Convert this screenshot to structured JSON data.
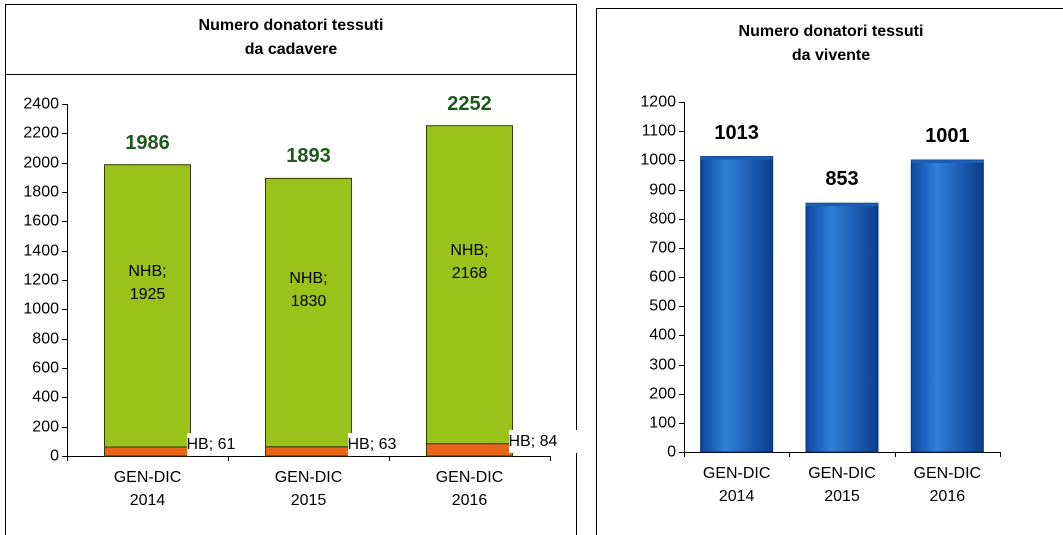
{
  "chart_data": [
    {
      "type": "bar",
      "stacked": true,
      "title": "Numero donatori tessuti\nda cadavere",
      "categories": [
        "GEN-DIC 2014",
        "GEN-DIC 2015",
        "GEN-DIC 2016"
      ],
      "series": [
        {
          "name": "HB",
          "color": "#e8661a",
          "values": [
            61,
            63,
            84
          ],
          "value_labels": [
            "HB; 61",
            "HB; 63",
            "HB; 84"
          ]
        },
        {
          "name": "NHB",
          "color": "#99c31a",
          "values": [
            1925,
            1830,
            2168
          ],
          "value_labels": [
            "NHB; 1925",
            "NHB; 1830",
            "NHB; 2168"
          ]
        }
      ],
      "totals": [
        1986,
        1893,
        2252
      ],
      "ylim": [
        0,
        2400
      ],
      "yticks": [
        0,
        200,
        400,
        600,
        800,
        1000,
        1200,
        1400,
        1600,
        1800,
        2000,
        2200,
        2400
      ]
    },
    {
      "type": "bar",
      "title": "Numero donatori tessuti\nda vivente",
      "categories": [
        "GEN-DIC 2014",
        "GEN-DIC 2015",
        "GEN-DIC 2016"
      ],
      "values": [
        1013,
        853,
        1001
      ],
      "color": "#1a5fb4",
      "ylim": [
        0,
        1200
      ],
      "yticks": [
        0,
        100,
        200,
        300,
        400,
        500,
        600,
        700,
        800,
        900,
        1000,
        1100,
        1200
      ]
    }
  ]
}
